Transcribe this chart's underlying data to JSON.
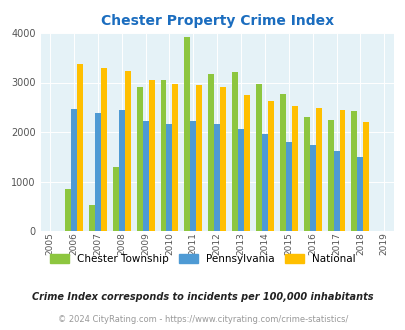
{
  "title": "Chester Property Crime Index",
  "years": [
    2005,
    2006,
    2007,
    2008,
    2009,
    2010,
    2011,
    2012,
    2013,
    2014,
    2015,
    2016,
    2017,
    2018,
    2019
  ],
  "chester": [
    null,
    850,
    520,
    1290,
    2900,
    3050,
    3920,
    3170,
    3220,
    2970,
    2760,
    2300,
    2240,
    2430,
    null
  ],
  "pennsylvania": [
    null,
    2470,
    2390,
    2450,
    2220,
    2160,
    2220,
    2160,
    2060,
    1950,
    1800,
    1740,
    1620,
    1500,
    null
  ],
  "national": [
    null,
    3370,
    3300,
    3240,
    3060,
    2970,
    2950,
    2900,
    2740,
    2620,
    2520,
    2480,
    2440,
    2200,
    null
  ],
  "chester_color": "#8dc63f",
  "pennsylvania_color": "#4e9ad4",
  "national_color": "#ffbf00",
  "bg_color": "#e5f2f7",
  "ylim": [
    0,
    4000
  ],
  "yticks": [
    0,
    1000,
    2000,
    3000,
    4000
  ],
  "footnote1": "Crime Index corresponds to incidents per 100,000 inhabitants",
  "footnote2": "© 2024 CityRating.com - https://www.cityrating.com/crime-statistics/",
  "title_color": "#1b6dbf",
  "footnote1_color": "#222222",
  "footnote2_color": "#999999",
  "bar_width": 0.25
}
